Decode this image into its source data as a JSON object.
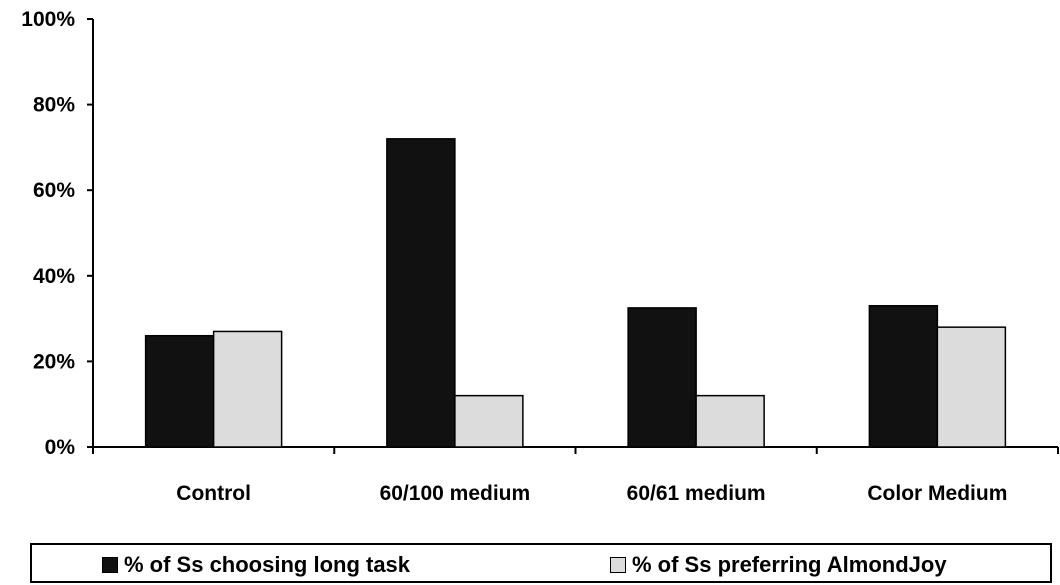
{
  "chart_data": {
    "type": "bar",
    "categories": [
      "Control",
      "60/100 medium",
      "60/61 medium",
      "Color Medium"
    ],
    "series": [
      {
        "name": "% of Ss choosing long task",
        "values": [
          26,
          72,
          32.5,
          33
        ],
        "color": "#111111"
      },
      {
        "name": "% of Ss preferring AlmondJoy",
        "values": [
          27,
          12,
          12,
          28
        ],
        "color": "#dcdcdc"
      }
    ],
    "yticks": [
      "0%",
      "20%",
      "40%",
      "60%",
      "80%",
      "100%"
    ],
    "ylim": [
      0,
      100
    ],
    "title": "",
    "xlabel": "",
    "ylabel": "",
    "grid": false,
    "legend_position": "bottom"
  }
}
